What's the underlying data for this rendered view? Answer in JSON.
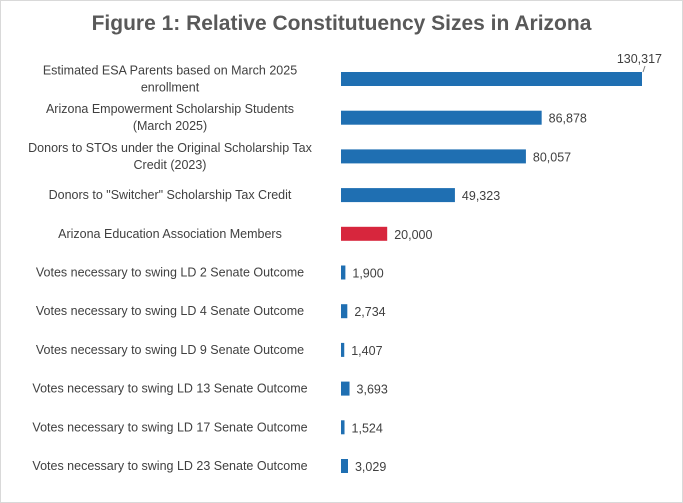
{
  "chart_data": {
    "type": "bar",
    "orientation": "horizontal",
    "title": "Figure 1: Relative Constitutuency Sizes in Arizona",
    "categories": [
      [
        "Estimated ESA Parents based on March 2025",
        "enrollment"
      ],
      [
        "Arizona Empowerment Scholarship Students",
        "(March 2025)"
      ],
      [
        "Donors to STOs under the Original Scholarship Tax",
        "Credit (2023)"
      ],
      [
        "Donors to \"Switcher\" Scholarship Tax Credit"
      ],
      [
        "Arizona Education Association Members"
      ],
      [
        "Votes necessary to swing LD 2 Senate Outcome"
      ],
      [
        "Votes necessary to swing LD 4 Senate Outcome"
      ],
      [
        "Votes necessary to swing LD 9 Senate Outcome"
      ],
      [
        "Votes necessary to swing LD 13 Senate Outcome"
      ],
      [
        "Votes necessary to swing LD 17 Senate Outcome"
      ],
      [
        "Votes necessary to swing LD 23 Senate Outcome"
      ]
    ],
    "values": [
      130317,
      86878,
      80057,
      49323,
      20000,
      1900,
      2734,
      1407,
      3693,
      1524,
      3029
    ],
    "value_labels": [
      "130,317",
      "86,878",
      "80,057",
      "49,323",
      "20,000",
      "1,900",
      "2,734",
      "1,407",
      "3,693",
      "1,524",
      "3,029"
    ],
    "colors": [
      "#1f6fb2",
      "#1f6fb2",
      "#1f6fb2",
      "#1f6fb2",
      "#d7263d",
      "#1f6fb2",
      "#1f6fb2",
      "#1f6fb2",
      "#1f6fb2",
      "#1f6fb2",
      "#1f6fb2"
    ],
    "xlim": [
      0,
      130317
    ],
    "xlabel": "",
    "ylabel": "",
    "grid": false,
    "legend": "none"
  }
}
